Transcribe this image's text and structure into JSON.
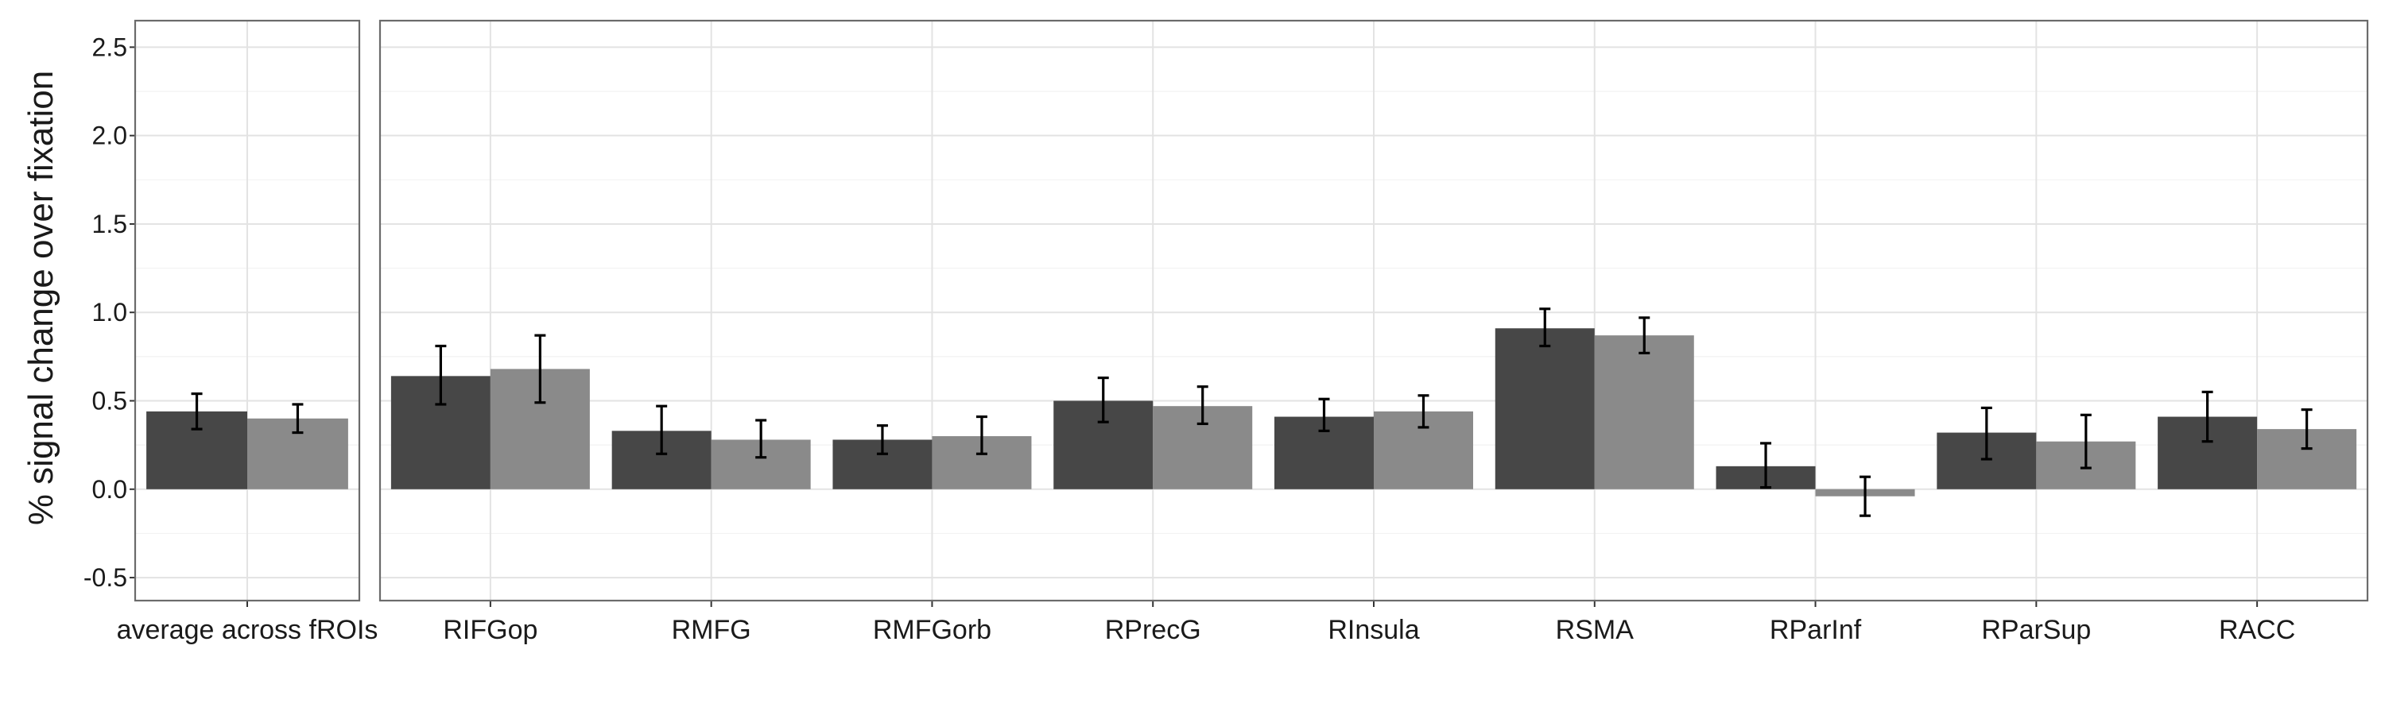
{
  "chart_data": {
    "type": "bar",
    "ylabel": "% signal change over fixation",
    "xlabel": "",
    "ylim": [
      -0.63,
      2.65
    ],
    "yticks": [
      -0.5,
      0.0,
      0.5,
      1.0,
      1.5,
      2.0,
      2.5
    ],
    "ytick_labels": [
      "-0.5",
      "0.0",
      "0.5",
      "1.0",
      "1.5",
      "2.0",
      "2.5"
    ],
    "grid": true,
    "legend": "none",
    "series_colors": [
      "#474747",
      "#8a8a8a"
    ],
    "panels": [
      {
        "categories": [
          "average across fROIs"
        ],
        "series": [
          {
            "values": [
              0.44
            ],
            "err_low": [
              0.34
            ],
            "err_high": [
              0.54
            ]
          },
          {
            "values": [
              0.4
            ],
            "err_low": [
              0.32
            ],
            "err_high": [
              0.48
            ]
          }
        ]
      },
      {
        "categories": [
          "RIFGop",
          "RMFG",
          "RMFGorb",
          "RPrecG",
          "RInsula",
          "RSMA",
          "RParInf",
          "RParSup",
          "RACC"
        ],
        "series": [
          {
            "values": [
              0.64,
              0.33,
              0.28,
              0.5,
              0.41,
              0.91,
              0.13,
              0.32,
              0.41
            ],
            "err_low": [
              0.48,
              0.2,
              0.2,
              0.38,
              0.33,
              0.81,
              0.01,
              0.17,
              0.27
            ],
            "err_high": [
              0.81,
              0.47,
              0.36,
              0.63,
              0.51,
              1.02,
              0.26,
              0.46,
              0.55
            ]
          },
          {
            "values": [
              0.68,
              0.28,
              0.3,
              0.47,
              0.44,
              0.87,
              -0.04,
              0.27,
              0.34
            ],
            "err_low": [
              0.49,
              0.18,
              0.2,
              0.37,
              0.35,
              0.77,
              -0.15,
              0.12,
              0.23
            ],
            "err_high": [
              0.87,
              0.39,
              0.41,
              0.58,
              0.53,
              0.97,
              0.07,
              0.42,
              0.45
            ]
          }
        ]
      }
    ]
  }
}
